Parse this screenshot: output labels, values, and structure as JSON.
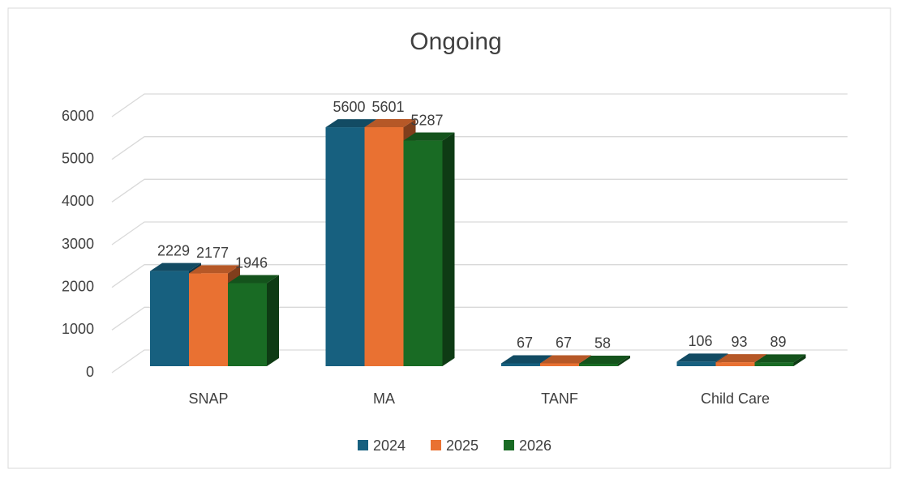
{
  "chart_data": {
    "type": "bar3d",
    "title": "Ongoing",
    "categories": [
      "SNAP",
      "MA",
      "TANF",
      "Child Care"
    ],
    "series": [
      {
        "name": "2024",
        "color": "#17607f",
        "values": [
          2229,
          5600,
          67,
          106
        ]
      },
      {
        "name": "2025",
        "color": "#e97132",
        "values": [
          2177,
          5601,
          67,
          93
        ]
      },
      {
        "name": "2026",
        "color": "#196b24",
        "values": [
          1946,
          5287,
          58,
          89
        ]
      }
    ],
    "ylim": [
      0,
      6000
    ],
    "yticks": [
      0,
      1000,
      2000,
      3000,
      4000,
      5000,
      6000
    ],
    "grid": true,
    "legend": "bottom"
  }
}
